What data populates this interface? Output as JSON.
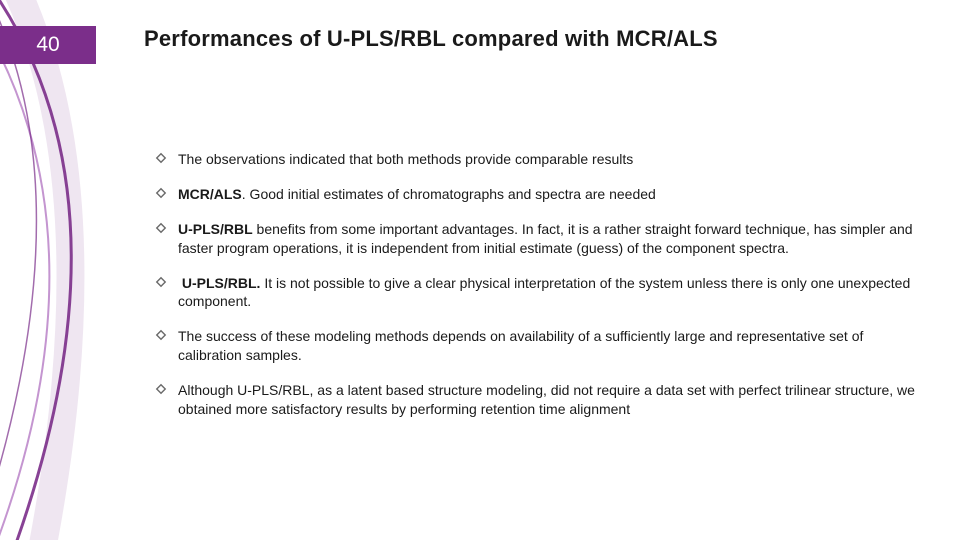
{
  "accent_color": "#7b2e8a",
  "accent_light": "#b57bc4",
  "text_color": "#1a1a1a",
  "background_color": "#ffffff",
  "slide_number": "40",
  "title": "Performances of U-PLS/RBL compared with MCR/ALS",
  "bullets": [
    {
      "html": "The observations indicated that both methods provide comparable results"
    },
    {
      "html": "<b>MCR/ALS</b>. Good initial estimates of chromatographs and spectra are needed"
    },
    {
      "html": "<b>U-PLS/RBL</b> benefits from some important advantages. In fact, it is a rather straight forward technique, has simpler and faster program operations, it is independent from initial estimate (guess) of the component spectra."
    },
    {
      "html": "&nbsp;<b>U-PLS/RBL.</b> It is not possible to give a clear physical interpretation of the system unless there is only one unexpected component."
    },
    {
      "html": "The success of these modeling methods depends on availability of a sufficiently large and representative set of calibration samples."
    },
    {
      "html": "Although U-PLS/RBL, as a latent based structure modeling, did not require a data set with perfect trilinear structure, we obtained more satisfactory results by performing retention time alignment"
    }
  ],
  "bullet_marker": {
    "type": "diamond-outline",
    "color": "#6a6a6a",
    "size": 10
  }
}
